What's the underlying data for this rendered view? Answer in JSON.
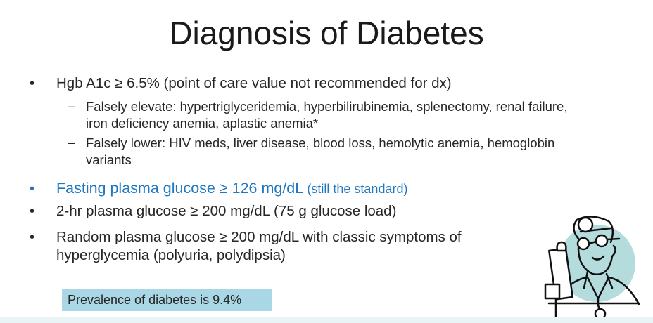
{
  "title": "Diagnosis of Diabetes",
  "bullets": [
    {
      "text": "Hgb A1c ≥ 6.5% (point of care value not recommended for dx)",
      "sub": [
        {
          "lines": [
            "Falsely elevate: hypertriglyceridemia, hyperbilirubinemia, splenectomy, renal failure,",
            "iron deficiency anemia, aplastic anemia*"
          ]
        },
        {
          "lines": [
            "Falsely lower: HIV meds, liver disease, blood loss, hemolytic anemia, hemoglobin",
            "variants"
          ]
        }
      ]
    },
    {
      "text": "Fasting plasma glucose ≥ 126 mg/dL",
      "note": "(still the standard)",
      "color": "#1f77c1"
    },
    {
      "text": "2-hr plasma glucose ≥ 200 mg/dL (75 g glucose load)"
    },
    {
      "lines": [
        "Random plasma glucose ≥ 200 mg/dL with classic symptoms of",
        "hyperglycemia (polyuria, polydipsia)"
      ]
    }
  ],
  "callout": "Prevalence of diabetes is 9.4%",
  "illustration": "doctor-with-stethoscope-icon",
  "colors": {
    "accent": "#1f77c1",
    "callout_bg": "#a9d7e5",
    "illustration_circle": "#b5dcdc"
  }
}
